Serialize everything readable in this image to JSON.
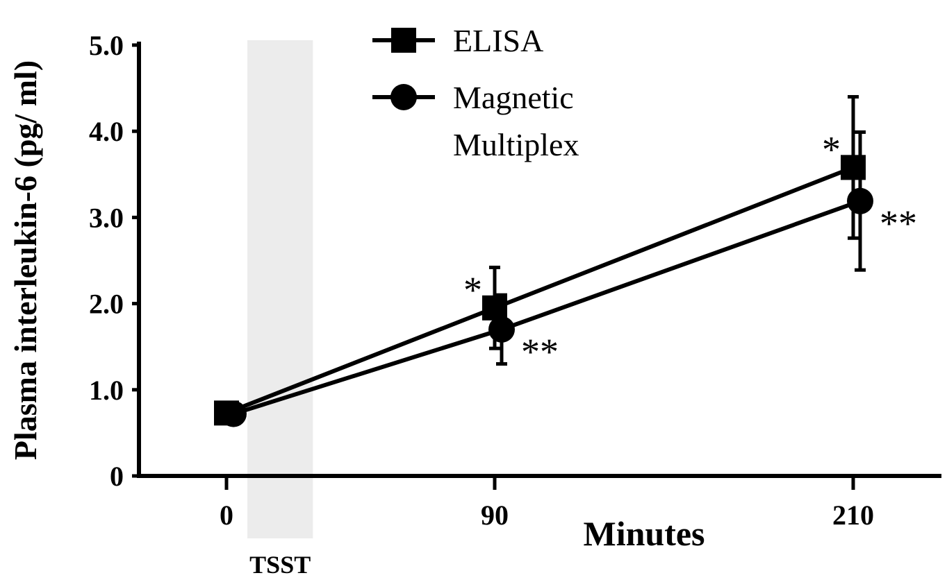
{
  "chart_data": {
    "type": "line",
    "xlabel": "Minutes",
    "ylabel": "Plasma interleukin-6 (pg/ ml)",
    "x": [
      0,
      90,
      210
    ],
    "x_tick_labels": [
      "0",
      "90",
      "210"
    ],
    "y_ticks": [
      0,
      1.0,
      2.0,
      3.0,
      4.0,
      5.0
    ],
    "y_tick_labels": [
      "0",
      "1.0",
      "2.0",
      "3.0",
      "4.0",
      "5.0"
    ],
    "ylim": [
      0,
      5.0
    ],
    "grid": false,
    "legend_position": "top-center",
    "series": [
      {
        "name": "ELISA",
        "marker": "square",
        "values": [
          0.73,
          1.95,
          3.58
        ],
        "error": [
          0.12,
          0.47,
          0.82
        ],
        "significance": [
          "",
          "*",
          "*"
        ]
      },
      {
        "name": "Magnetic Multiplex",
        "marker": "circle",
        "values": [
          0.72,
          1.7,
          3.19
        ],
        "error": [
          0.1,
          0.4,
          0.8
        ],
        "significance": [
          "",
          "**",
          "**"
        ]
      }
    ],
    "annotations": [
      {
        "label": "TSST",
        "x_start": 7,
        "x_end": 29
      }
    ]
  }
}
